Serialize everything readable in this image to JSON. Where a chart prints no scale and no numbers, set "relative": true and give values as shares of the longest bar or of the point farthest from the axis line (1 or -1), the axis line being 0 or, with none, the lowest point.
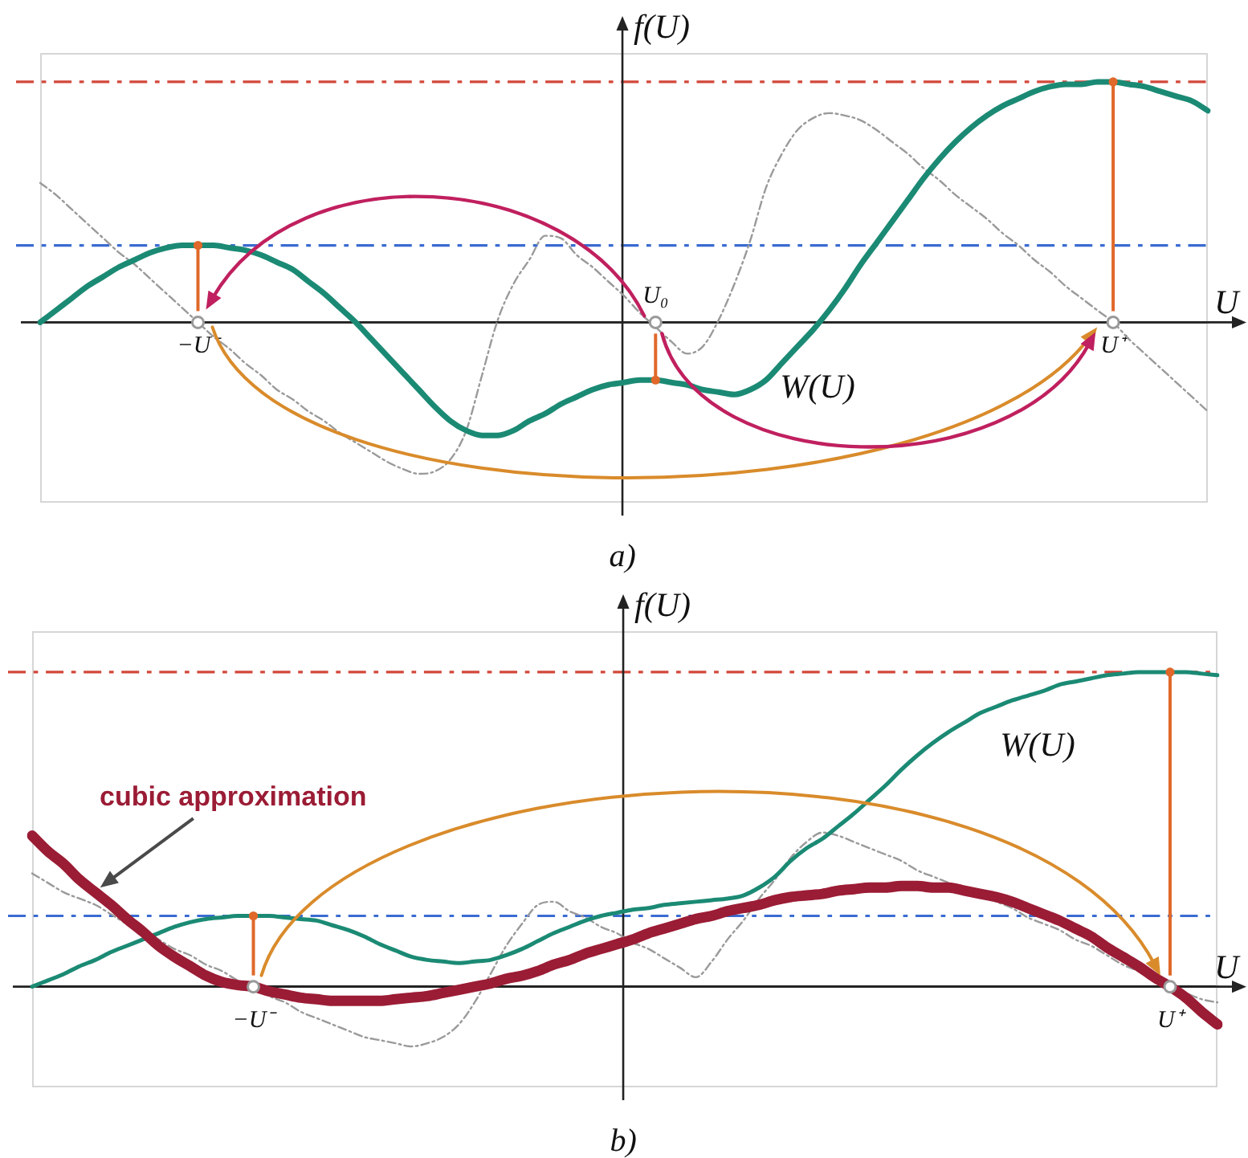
{
  "chart_data": [
    {
      "type": "line",
      "relative": true,
      "xlabel": "U",
      "ylabel": "f(U)",
      "annotations": [
        "a)"
      ],
      "categories": [
        null,
        null,
        null,
        null,
        null,
        null,
        null,
        null,
        null,
        null,
        "−U⁻",
        null,
        null,
        null,
        null,
        null,
        null,
        null,
        null,
        null,
        null,
        null,
        null,
        null,
        null,
        null,
        null,
        null,
        null,
        null,
        null,
        null,
        null,
        null,
        null,
        null,
        null,
        null,
        null,
        "U₀",
        null,
        null,
        null,
        null,
        null,
        null,
        null,
        null,
        null,
        null,
        null,
        null,
        null,
        null,
        null,
        null,
        null,
        null,
        null,
        null,
        null,
        null,
        null,
        null,
        null,
        null,
        null,
        null,
        "U⁺",
        null,
        null,
        null,
        null,
        null,
        null
      ],
      "ref_lines": [
        {
          "axis": "y",
          "value": 1,
          "color": "#d2473a",
          "line_style": "dashed"
        },
        {
          "axis": "y",
          "value": 0.32,
          "color": "#3a6bd1",
          "line_style": "dashed"
        }
      ],
      "series": [
        {
          "name": "W(U)",
          "color": "#1b8a74",
          "values": [
            0,
            0.05,
            0.1,
            0.15,
            0.19,
            0.23,
            0.26,
            0.29,
            0.31,
            0.32,
            0.32,
            0.32,
            0.31,
            0.3,
            0.28,
            0.25,
            0.22,
            0.17,
            0.12,
            0.06,
            0,
            -0.07,
            -0.14,
            -0.21,
            -0.28,
            -0.35,
            -0.41,
            -0.45,
            -0.47,
            -0.47,
            -0.45,
            -0.41,
            -0.38,
            -0.34,
            -0.31,
            -0.28,
            -0.26,
            -0.25,
            -0.24,
            -0.24,
            -0.25,
            -0.26,
            -0.28,
            -0.29,
            -0.3,
            -0.28,
            -0.24,
            -0.17,
            -0.1,
            -0.03,
            0.05,
            0.14,
            0.24,
            0.33,
            0.42,
            0.51,
            0.6,
            0.68,
            0.75,
            0.81,
            0.86,
            0.9,
            0.93,
            0.96,
            0.98,
            0.99,
            0.99,
            1,
            1,
            0.99,
            0.98,
            0.96,
            0.94,
            0.92,
            0.88
          ]
        },
        {
          "color": "#9a9a9a",
          "line_style": "dashed",
          "values": [
            0.58,
            0.53,
            0.47,
            0.41,
            0.35,
            0.29,
            0.24,
            0.18,
            0.12,
            0.06,
            0,
            -0.06,
            -0.11,
            -0.17,
            -0.22,
            -0.28,
            -0.32,
            -0.37,
            -0.41,
            -0.46,
            -0.5,
            -0.54,
            -0.58,
            -0.61,
            -0.63,
            -0.62,
            -0.57,
            -0.45,
            -0.22,
            0.01,
            0.16,
            0.26,
            0.36,
            0.35,
            0.28,
            0.23,
            0.17,
            0.11,
            0.04,
            -0.02,
            -0.08,
            -0.13,
            -0.1,
            0.01,
            0.16,
            0.34,
            0.56,
            0.7,
            0.8,
            0.85,
            0.87,
            0.86,
            0.84,
            0.8,
            0.75,
            0.7,
            0.64,
            0.59,
            0.53,
            0.48,
            0.43,
            0.37,
            0.32,
            0.26,
            0.21,
            0.15,
            0.1,
            0.05,
            0,
            -0.07,
            -0.13,
            -0.19,
            -0.25,
            -0.31,
            -0.37
          ]
        },
        {
          "type": "scatter",
          "marker": "circle",
          "color": "#9a9a9a",
          "values": [
            null,
            null,
            null,
            null,
            null,
            null,
            null,
            null,
            null,
            null,
            0,
            null,
            null,
            null,
            null,
            null,
            null,
            null,
            null,
            null,
            null,
            null,
            null,
            null,
            null,
            null,
            null,
            null,
            null,
            null,
            null,
            null,
            null,
            null,
            null,
            null,
            null,
            null,
            null,
            0,
            null,
            null,
            null,
            null,
            null,
            null,
            null,
            null,
            null,
            null,
            null,
            null,
            null,
            null,
            null,
            null,
            null,
            null,
            null,
            null,
            null,
            null,
            null,
            null,
            null,
            null,
            null,
            null,
            0,
            null,
            null,
            null,
            null,
            null,
            null
          ]
        }
      ]
    },
    {
      "type": "line",
      "relative": true,
      "xlabel": "U",
      "ylabel": "f(U)",
      "annotations": [
        "b)"
      ],
      "categories": [
        null,
        null,
        null,
        null,
        null,
        null,
        null,
        null,
        null,
        null,
        null,
        null,
        null,
        null,
        "−U⁻",
        null,
        null,
        null,
        null,
        null,
        null,
        null,
        null,
        null,
        null,
        null,
        null,
        null,
        null,
        null,
        null,
        null,
        null,
        null,
        null,
        null,
        null,
        null,
        null,
        null,
        null,
        null,
        null,
        null,
        null,
        null,
        null,
        null,
        null,
        null,
        null,
        null,
        null,
        null,
        null,
        null,
        null,
        null,
        null,
        null,
        null,
        null,
        null,
        null,
        null,
        null,
        null,
        null,
        null,
        null,
        null,
        null,
        "U⁺",
        null,
        null,
        null
      ],
      "ref_lines": [
        {
          "axis": "y",
          "value": 1,
          "color": "#d2473a",
          "line_style": "dashed"
        },
        {
          "axis": "y",
          "value": 0.225,
          "color": "#3a6bd1",
          "line_style": "dashed"
        }
      ],
      "series": [
        {
          "name": "W(U)",
          "color": "#1b8a74",
          "values": [
            0,
            0.02,
            0.04,
            0.065,
            0.085,
            0.11,
            0.13,
            0.15,
            0.17,
            0.19,
            0.205,
            0.215,
            0.22,
            0.225,
            0.225,
            0.225,
            0.22,
            0.215,
            0.21,
            0.195,
            0.18,
            0.16,
            0.135,
            0.115,
            0.095,
            0.085,
            0.08,
            0.075,
            0.08,
            0.085,
            0.1,
            0.12,
            0.145,
            0.17,
            0.19,
            0.21,
            0.225,
            0.235,
            0.245,
            0.25,
            0.26,
            0.265,
            0.27,
            0.275,
            0.28,
            0.29,
            0.315,
            0.35,
            0.4,
            0.44,
            0.47,
            0.51,
            0.55,
            0.595,
            0.64,
            0.69,
            0.735,
            0.775,
            0.81,
            0.84,
            0.87,
            0.89,
            0.91,
            0.925,
            0.94,
            0.96,
            0.97,
            0.98,
            0.99,
            0.995,
            1,
            1,
            1,
            1,
            0.995,
            0.99
          ]
        },
        {
          "color": "#9a9a9a",
          "line_style": "dashed",
          "values": [
            0.36,
            0.33,
            0.3,
            0.28,
            0.26,
            0.23,
            0.2,
            0.18,
            0.15,
            0.12,
            0.1,
            0.07,
            0.05,
            0.02,
            0,
            -0.03,
            -0.05,
            -0.08,
            -0.1,
            -0.12,
            -0.14,
            -0.16,
            -0.17,
            -0.18,
            -0.19,
            -0.18,
            -0.16,
            -0.12,
            -0.05,
            0.04,
            0.13,
            0.2,
            0.26,
            0.27,
            0.24,
            0.22,
            0.19,
            0.17,
            0.14,
            0.12,
            0.09,
            0.06,
            0.03,
            0.08,
            0.15,
            0.21,
            0.28,
            0.34,
            0.41,
            0.46,
            0.49,
            0.48,
            0.46,
            0.44,
            0.42,
            0.4,
            0.37,
            0.35,
            0.33,
            0.31,
            0.29,
            0.27,
            0.25,
            0.22,
            0.2,
            0.18,
            0.15,
            0.13,
            0.1,
            0.07,
            0.05,
            0.03,
            0,
            -0.02,
            -0.04,
            -0.05
          ]
        },
        {
          "name": "cubic approximation",
          "color": "#9b1c35",
          "values": [
            0.48,
            0.43,
            0.39,
            0.34,
            0.3,
            0.26,
            0.215,
            0.175,
            0.13,
            0.095,
            0.065,
            0.035,
            0.015,
            0.005,
            0,
            -0.015,
            -0.025,
            -0.035,
            -0.04,
            -0.045,
            -0.045,
            -0.045,
            -0.045,
            -0.04,
            -0.035,
            -0.03,
            -0.02,
            -0.01,
            0,
            0.01,
            0.025,
            0.035,
            0.05,
            0.07,
            0.085,
            0.105,
            0.12,
            0.135,
            0.15,
            0.17,
            0.185,
            0.2,
            0.215,
            0.225,
            0.24,
            0.25,
            0.26,
            0.275,
            0.285,
            0.29,
            0.295,
            0.305,
            0.31,
            0.315,
            0.315,
            0.32,
            0.32,
            0.315,
            0.315,
            0.305,
            0.295,
            0.285,
            0.27,
            0.25,
            0.23,
            0.21,
            0.185,
            0.16,
            0.125,
            0.095,
            0.065,
            0.03,
            0,
            -0.035,
            -0.08,
            -0.12
          ]
        },
        {
          "type": "scatter",
          "marker": "circle",
          "color": "#9a9a9a",
          "values": [
            null,
            null,
            null,
            null,
            null,
            null,
            null,
            null,
            null,
            null,
            null,
            null,
            null,
            null,
            0,
            null,
            null,
            null,
            null,
            null,
            null,
            null,
            null,
            null,
            null,
            null,
            null,
            null,
            null,
            null,
            null,
            null,
            null,
            null,
            null,
            null,
            null,
            null,
            null,
            null,
            null,
            null,
            null,
            null,
            null,
            null,
            null,
            null,
            null,
            null,
            null,
            null,
            null,
            null,
            null,
            null,
            null,
            null,
            null,
            null,
            null,
            null,
            null,
            null,
            null,
            null,
            null,
            null,
            null,
            null,
            null,
            null,
            0,
            null,
            null,
            null
          ]
        }
      ]
    }
  ]
}
